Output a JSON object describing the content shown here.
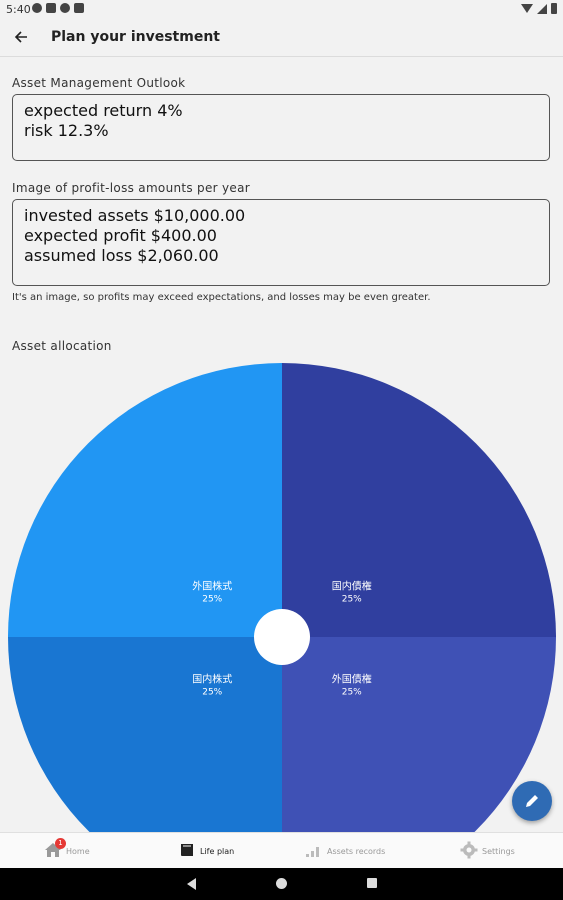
{
  "status_bar": {
    "time": "5:40"
  },
  "app_bar": {
    "title": "Plan your investment"
  },
  "outlook": {
    "label": "Asset Management Outlook",
    "lines": [
      "expected return 4%",
      "risk 12.3%"
    ]
  },
  "profit_loss": {
    "label": "Image of profit-loss amounts per year",
    "lines": [
      "invested assets $10,000.00",
      "expected profit $400.00",
      "assumed loss $2,060.00"
    ],
    "note": "It's an image, so profits may exceed expectations, and losses may be even greater."
  },
  "allocation": {
    "label": "Asset allocation"
  },
  "chart_data": {
    "type": "pie",
    "style": "donut",
    "start": "top",
    "direction": "clockwise",
    "slices": [
      {
        "label": "国内債権",
        "value": 25,
        "value_label": "25%",
        "color": "#303f9f"
      },
      {
        "label": "外国債権",
        "value": 25,
        "value_label": "25%",
        "color": "#3f51b5"
      },
      {
        "label": "国内株式",
        "value": 25,
        "value_label": "25%",
        "color": "#1976d2"
      },
      {
        "label": "外国株式",
        "value": 25,
        "value_label": "25%",
        "color": "#2196f3"
      }
    ]
  },
  "fab": {
    "icon": "pencil-icon"
  },
  "bottom_nav": {
    "items": [
      {
        "label": "Home",
        "icon": "home-icon",
        "badge": "1"
      },
      {
        "label": "Life plan",
        "icon": "book-icon"
      },
      {
        "label": "Assets records",
        "icon": "bar-chart-icon"
      },
      {
        "label": "Settings",
        "icon": "gear-icon"
      }
    ]
  },
  "colors": {
    "accent": "#2f6bb4",
    "background": "#f2f2f2"
  }
}
